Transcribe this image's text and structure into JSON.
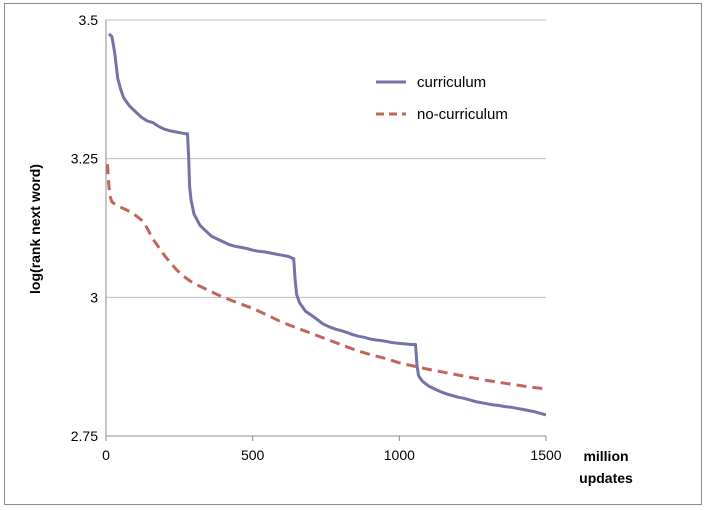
{
  "chart_data": {
    "type": "line",
    "title": "",
    "xlabel": "million updates",
    "xlabel_lines": [
      "million",
      "updates"
    ],
    "ylabel": "log(rank next word)",
    "xlim": [
      0,
      1500
    ],
    "ylim": [
      2.75,
      3.5
    ],
    "xticks": [
      0,
      500,
      1000,
      1500
    ],
    "xtick_labels": [
      "0",
      "500",
      "1000",
      "1500"
    ],
    "yticks": [
      2.75,
      3,
      3.25,
      3.5
    ],
    "ytick_labels": [
      "2.75",
      "3",
      "3.25",
      "3.5"
    ],
    "grid": "horizontal",
    "legend_position": "top-right",
    "colors": {
      "curriculum": "#7373a6",
      "no-curriculum": "#c0665a"
    },
    "series": [
      {
        "name": "curriculum",
        "style": "solid",
        "x": [
          10,
          20,
          30,
          40,
          50,
          60,
          80,
          100,
          120,
          140,
          160,
          180,
          200,
          220,
          240,
          260,
          270,
          278,
          282,
          285,
          290,
          300,
          320,
          340,
          360,
          380,
          400,
          420,
          440,
          460,
          480,
          500,
          520,
          540,
          560,
          580,
          600,
          620,
          630,
          636,
          640,
          645,
          650,
          660,
          680,
          700,
          720,
          740,
          760,
          780,
          800,
          820,
          840,
          860,
          880,
          900,
          920,
          940,
          960,
          980,
          1000,
          1020,
          1040,
          1055,
          1060,
          1065,
          1070,
          1080,
          1100,
          1120,
          1140,
          1160,
          1180,
          1200,
          1220,
          1240,
          1260,
          1280,
          1300,
          1320,
          1340,
          1360,
          1380,
          1400,
          1420,
          1440,
          1460,
          1480,
          1500
        ],
        "y": [
          3.475,
          3.47,
          3.44,
          3.395,
          3.375,
          3.36,
          3.345,
          3.335,
          3.325,
          3.318,
          3.315,
          3.308,
          3.303,
          3.3,
          3.298,
          3.296,
          3.295,
          3.295,
          3.25,
          3.2,
          3.175,
          3.15,
          3.13,
          3.12,
          3.11,
          3.105,
          3.1,
          3.095,
          3.092,
          3.09,
          3.088,
          3.085,
          3.083,
          3.082,
          3.08,
          3.078,
          3.076,
          3.074,
          3.072,
          3.07,
          3.07,
          3.03,
          3.005,
          2.99,
          2.975,
          2.968,
          2.96,
          2.952,
          2.947,
          2.943,
          2.94,
          2.937,
          2.933,
          2.93,
          2.928,
          2.925,
          2.923,
          2.922,
          2.92,
          2.918,
          2.917,
          2.916,
          2.915,
          2.915,
          2.88,
          2.86,
          2.855,
          2.848,
          2.84,
          2.835,
          2.83,
          2.826,
          2.823,
          2.82,
          2.818,
          2.815,
          2.812,
          2.81,
          2.808,
          2.806,
          2.805,
          2.803,
          2.802,
          2.8,
          2.798,
          2.796,
          2.794,
          2.791,
          2.788
        ]
      },
      {
        "name": "no-curriculum",
        "style": "dashed",
        "x": [
          5,
          10,
          15,
          20,
          30,
          40,
          60,
          80,
          100,
          120,
          140,
          160,
          180,
          200,
          220,
          240,
          260,
          280,
          300,
          320,
          340,
          360,
          380,
          400,
          450,
          500,
          550,
          600,
          650,
          700,
          750,
          800,
          850,
          900,
          950,
          1000,
          1050,
          1100,
          1150,
          1200,
          1250,
          1300,
          1350,
          1400,
          1450,
          1500
        ],
        "y": [
          3.24,
          3.2,
          3.18,
          3.172,
          3.168,
          3.165,
          3.16,
          3.155,
          3.148,
          3.14,
          3.125,
          3.105,
          3.09,
          3.075,
          3.062,
          3.05,
          3.04,
          3.032,
          3.025,
          3.02,
          3.015,
          3.01,
          3.005,
          3.0,
          2.99,
          2.98,
          2.968,
          2.955,
          2.945,
          2.935,
          2.925,
          2.915,
          2.905,
          2.897,
          2.89,
          2.882,
          2.876,
          2.87,
          2.865,
          2.86,
          2.855,
          2.85,
          2.846,
          2.842,
          2.838,
          2.835
        ]
      }
    ]
  }
}
